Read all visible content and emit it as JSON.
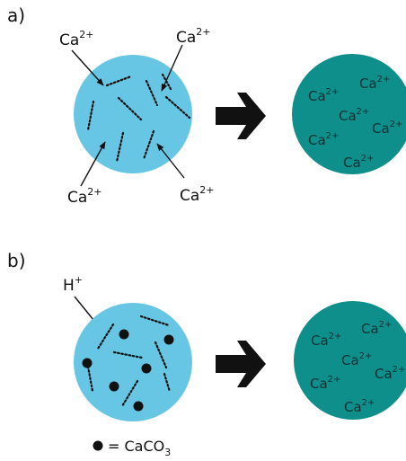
{
  "panel_a": {
    "letter": "a)",
    "ion_base": "Ca",
    "ion_charge": "2+",
    "left_circle_color": "#66c6e4",
    "right_circle_color": "#0e8f8c",
    "arrow": "right-arrow-icon"
  },
  "panel_b": {
    "letter": "b)",
    "proton_base": "H",
    "proton_charge": "+",
    "ion_base": "Ca",
    "ion_charge": "2+",
    "arrow": "right-arrow-icon"
  },
  "legend": {
    "marker": "black-dot-icon",
    "text": "= CaCO",
    "subscript": "3"
  }
}
